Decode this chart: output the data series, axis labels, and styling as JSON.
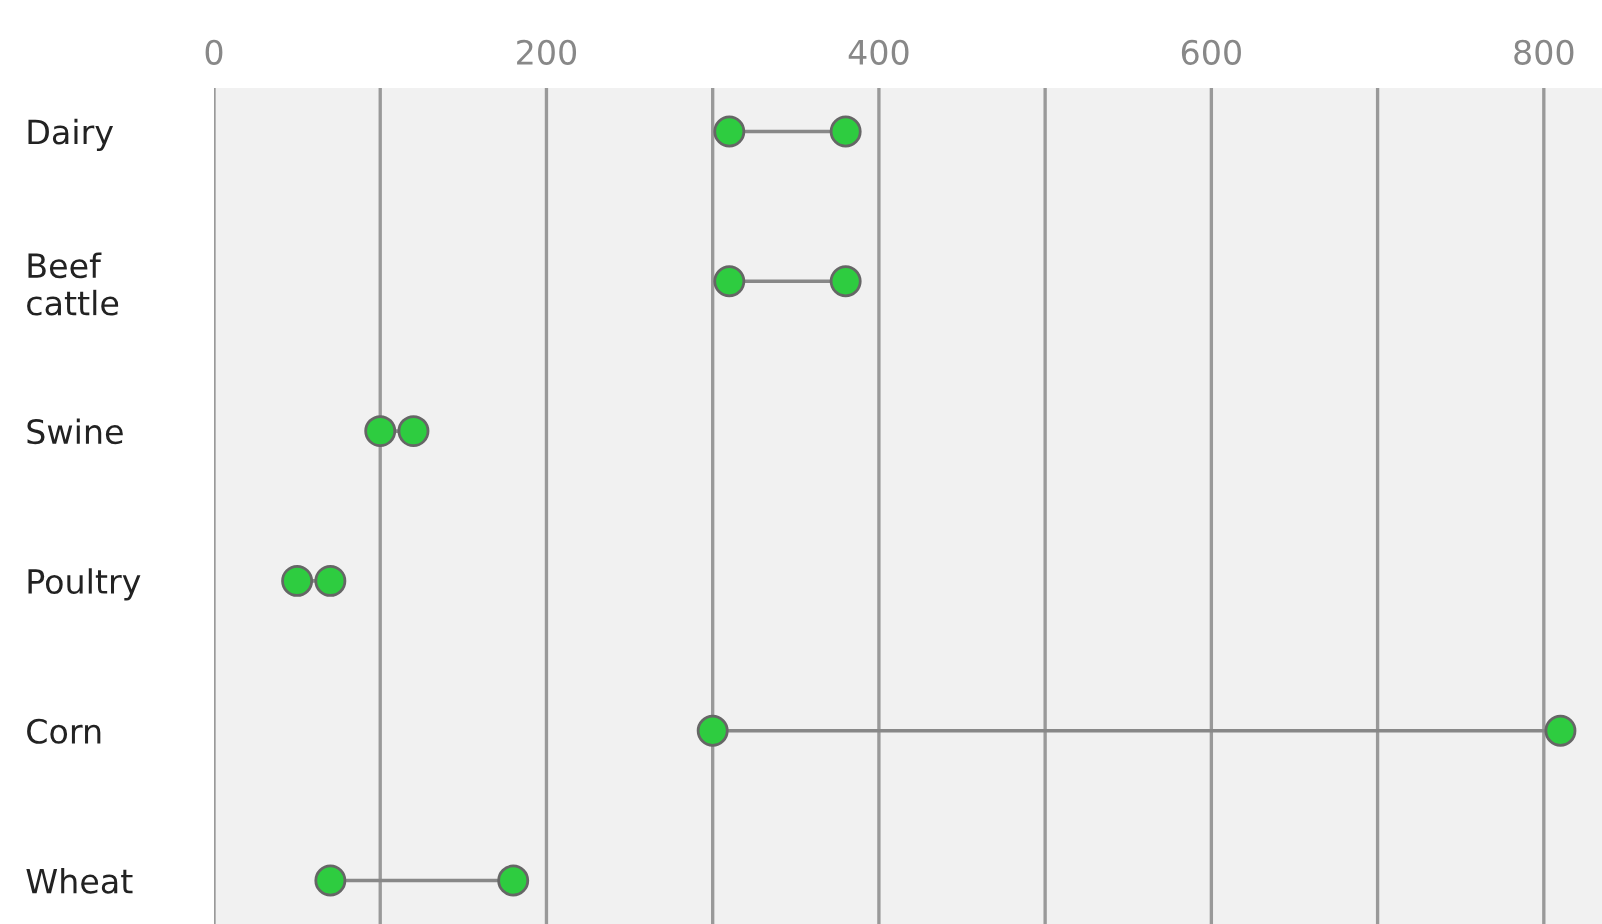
{
  "chart_data": {
    "type": "scatter",
    "orientation": "horizontal",
    "categories": [
      "Dairy",
      "Beef\ncattle",
      "Swine",
      "Poultry",
      "Corn",
      "Wheat"
    ],
    "series": [
      {
        "color": "#2ecc40",
        "values": [
          310,
          310,
          100,
          50,
          300,
          70
        ]
      },
      {
        "color": "#2ecc40",
        "values": [
          380,
          380,
          120,
          70,
          810,
          180
        ]
      }
    ],
    "xlim": [
      0,
      835
    ],
    "xticks": [
      0,
      {
        "value": 100,
        "label": null
      },
      200,
      {
        "value": 300,
        "label": null
      },
      400,
      {
        "value": 500,
        "label": null
      },
      600,
      {
        "value": 700,
        "label": null
      },
      800
    ],
    "grid": "x",
    "marker": "circle",
    "legend": false
  }
}
